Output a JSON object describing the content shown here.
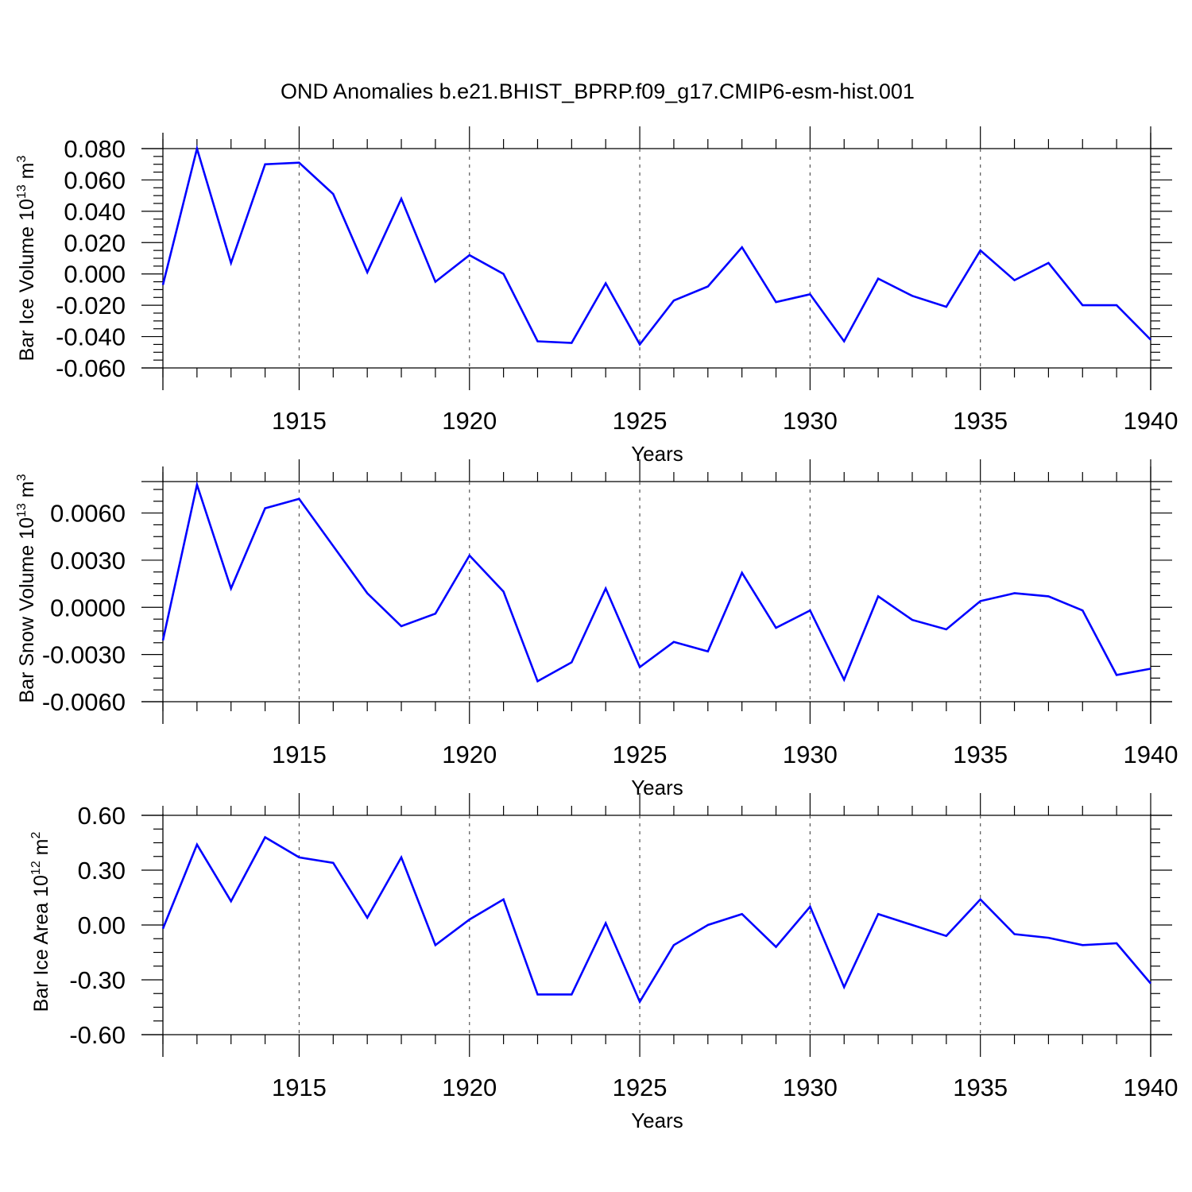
{
  "title": "OND Anomalies b.e21.BHIST_BPRP.f09_g17.CMIP6-esm-hist.001",
  "colors": {
    "line": "#0000ff",
    "axis": "#000000"
  },
  "chart_data": [
    {
      "type": "line",
      "xlabel": "Years",
      "ylabel": {
        "main": "Bar Ice Volume 10",
        "sup": "13",
        "unit": " m",
        "unit_sup": "3"
      },
      "xlim": [
        1911,
        1940
      ],
      "ylim": [
        -0.06,
        0.08
      ],
      "xticks": [
        "1915",
        "1920",
        "1925",
        "1930",
        "1935",
        "1940"
      ],
      "yticks": [
        "0.080",
        "0.060",
        "0.040",
        "0.020",
        "0.000",
        "-0.020",
        "-0.040",
        "-0.060"
      ],
      "grid": "vertical dashed at labeled years",
      "x": [
        1911,
        1912,
        1913,
        1914,
        1915,
        1916,
        1917,
        1918,
        1919,
        1920,
        1921,
        1922,
        1923,
        1924,
        1925,
        1926,
        1927,
        1928,
        1929,
        1930,
        1931,
        1932,
        1933,
        1934,
        1935,
        1936,
        1937,
        1938,
        1939,
        1940
      ],
      "series": [
        {
          "values": [
            -0.007,
            0.08,
            0.007,
            0.07,
            0.071,
            0.051,
            0.001,
            0.048,
            -0.005,
            0.012,
            0.0,
            -0.043,
            -0.044,
            -0.006,
            -0.045,
            -0.017,
            -0.008,
            0.017,
            -0.018,
            -0.013,
            -0.043,
            -0.003,
            -0.014,
            -0.021,
            0.015,
            -0.004,
            0.007,
            -0.02,
            -0.02,
            -0.042
          ]
        }
      ]
    },
    {
      "type": "line",
      "xlabel": "Years",
      "ylabel": {
        "main": "Bar Snow Volume 10",
        "sup": "13",
        "unit": " m",
        "unit_sup": "3"
      },
      "xlim": [
        1911,
        1940
      ],
      "ylim": [
        -0.006,
        0.008
      ],
      "xticks": [
        "1915",
        "1920",
        "1925",
        "1930",
        "1935",
        "1940"
      ],
      "yticks": [
        "0.0060",
        "0.0030",
        "0.0000",
        "-0.0030",
        "-0.0060"
      ],
      "grid": "vertical dashed at labeled years",
      "x": [
        1911,
        1912,
        1913,
        1914,
        1915,
        1916,
        1917,
        1918,
        1919,
        1920,
        1921,
        1922,
        1923,
        1924,
        1925,
        1926,
        1927,
        1928,
        1929,
        1930,
        1931,
        1932,
        1933,
        1934,
        1935,
        1936,
        1937,
        1938,
        1939,
        1940
      ],
      "series": [
        {
          "values": [
            -0.0021,
            0.0078,
            0.0012,
            0.0063,
            0.0069,
            0.0039,
            0.0009,
            -0.0012,
            -0.0004,
            0.0033,
            0.001,
            -0.0047,
            -0.0035,
            0.0012,
            -0.0038,
            -0.0022,
            -0.0028,
            0.0022,
            -0.0013,
            -0.0002,
            -0.0046,
            0.0007,
            -0.0008,
            -0.0014,
            0.0004,
            0.0009,
            0.0007,
            -0.0002,
            -0.0043,
            -0.0039
          ]
        }
      ]
    },
    {
      "type": "line",
      "xlabel": "Years",
      "ylabel": {
        "main": "Bar Ice Area 10",
        "sup": "12",
        "unit": " m",
        "unit_sup": "2"
      },
      "xlim": [
        1911,
        1940
      ],
      "ylim": [
        -0.6,
        0.6
      ],
      "xticks": [
        "1915",
        "1920",
        "1925",
        "1930",
        "1935",
        "1940"
      ],
      "yticks": [
        "0.60",
        "0.30",
        "0.00",
        "-0.30",
        "-0.60"
      ],
      "grid": "vertical dashed at labeled years",
      "x": [
        1911,
        1912,
        1913,
        1914,
        1915,
        1916,
        1917,
        1918,
        1919,
        1920,
        1921,
        1922,
        1923,
        1924,
        1925,
        1926,
        1927,
        1928,
        1929,
        1930,
        1931,
        1932,
        1933,
        1934,
        1935,
        1936,
        1937,
        1938,
        1939,
        1940
      ],
      "series": [
        {
          "values": [
            -0.02,
            0.44,
            0.13,
            0.48,
            0.37,
            0.34,
            0.04,
            0.37,
            -0.11,
            0.03,
            0.14,
            -0.38,
            -0.38,
            0.01,
            -0.42,
            -0.11,
            0.0,
            0.06,
            -0.12,
            0.1,
            -0.34,
            0.06,
            0.0,
            -0.06,
            0.14,
            -0.05,
            -0.07,
            -0.11,
            -0.1,
            -0.32
          ]
        }
      ]
    }
  ]
}
